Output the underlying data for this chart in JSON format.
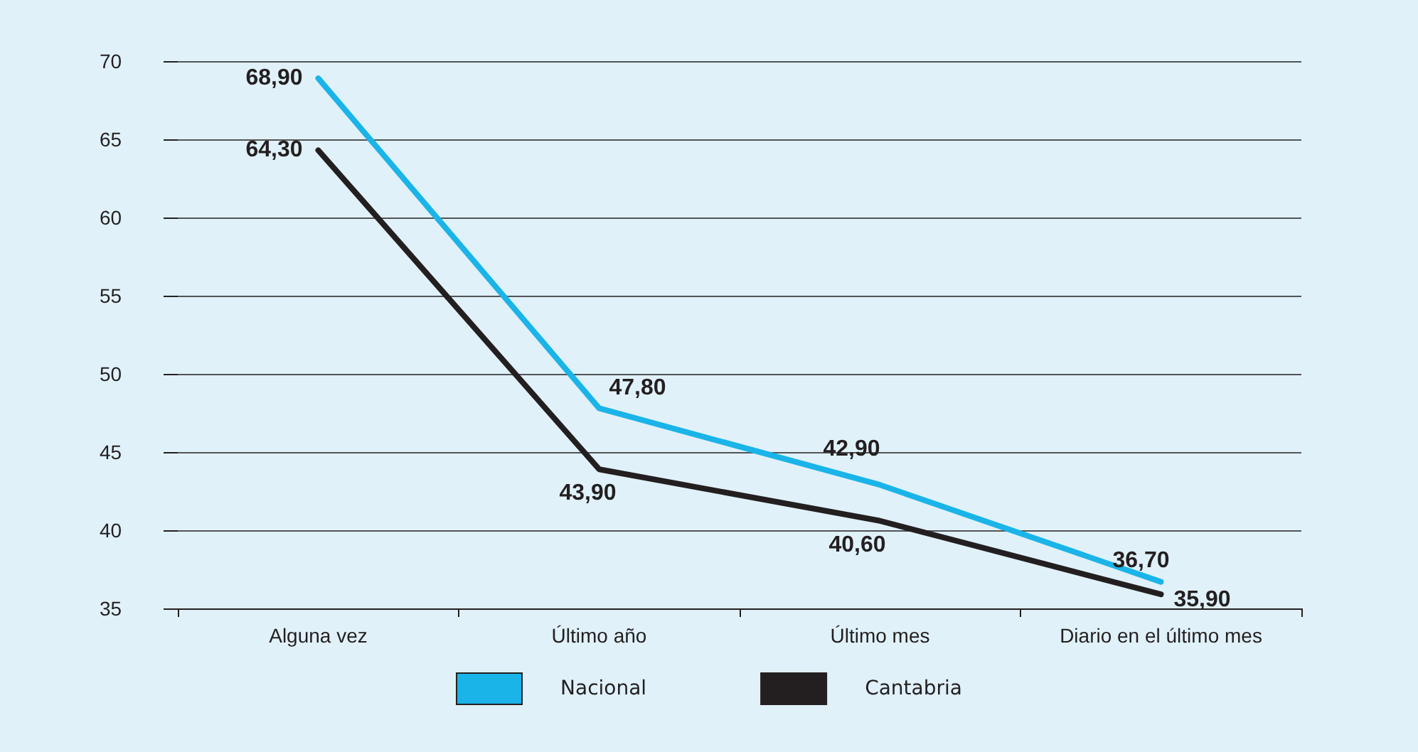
{
  "chart_data": {
    "type": "line",
    "categories": [
      "Alguna vez",
      "Último año",
      "Último mes",
      "Diario en el último mes"
    ],
    "series": [
      {
        "name": "Nacional",
        "color": "#1ab4e8",
        "values": [
          68.9,
          47.8,
          42.9,
          36.7
        ],
        "value_labels": [
          "68,90",
          "47,80",
          "42,90",
          "36,70"
        ]
      },
      {
        "name": "Cantabria",
        "color": "#231f20",
        "values": [
          64.3,
          43.9,
          40.6,
          35.9
        ],
        "value_labels": [
          "64,30",
          "43,90",
          "40,60",
          "35,90"
        ]
      }
    ],
    "ylim": [
      35,
      70
    ],
    "yticks": [
      35,
      40,
      45,
      50,
      55,
      60,
      65,
      70
    ],
    "grid": "y",
    "legend": "bottom",
    "marker": "none",
    "line_style": "solid"
  }
}
